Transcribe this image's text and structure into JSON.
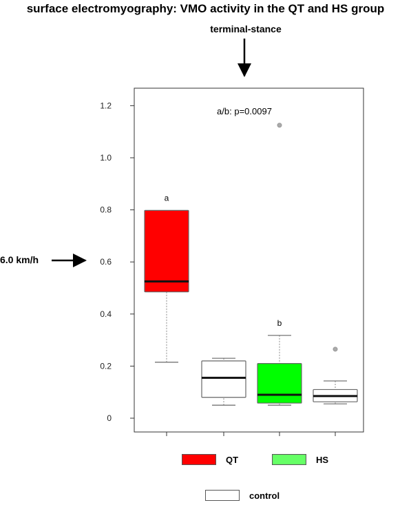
{
  "title": "surface electromyography: VMO activity in the QT and HS group",
  "phase_label": "terminal-stance",
  "speed_label": "6.0 km/h",
  "chart_data": {
    "type": "box",
    "title": "surface electromyography: VMO activity in the QT and HS group",
    "ylim": [
      0,
      1.25
    ],
    "yticks": [
      0,
      0.2,
      0.4,
      0.6,
      0.8,
      1.0,
      1.2
    ],
    "ytick_labels": [
      "0",
      "0.2",
      "0.4",
      "0.6",
      "0.8",
      "1.0",
      "1.2"
    ],
    "annotation": "a/b: p=0.0097",
    "boxes": [
      {
        "group": "QT",
        "color": "#ff0000",
        "whisker_low": 0.215,
        "q1": 0.485,
        "median": 0.525,
        "q3": 0.798,
        "whisker_high": 0.798,
        "outliers": [],
        "letter": "a"
      },
      {
        "group": "control",
        "color": "#ffffff",
        "whisker_low": 0.05,
        "q1": 0.08,
        "median": 0.155,
        "q3": 0.22,
        "whisker_high": 0.23,
        "outliers": [],
        "letter": ""
      },
      {
        "group": "HS",
        "color": "#00ff00",
        "whisker_low": 0.05,
        "q1": 0.058,
        "median": 0.09,
        "q3": 0.21,
        "whisker_high": 0.318,
        "outliers": [
          1.125
        ],
        "letter": "b"
      },
      {
        "group": "control",
        "color": "#ffffff",
        "whisker_low": 0.055,
        "q1": 0.063,
        "median": 0.085,
        "q3": 0.11,
        "whisker_high": 0.143,
        "outliers": [
          0.265
        ],
        "letter": ""
      }
    ],
    "legend": [
      {
        "label": "QT",
        "color": "#ff0000"
      },
      {
        "label": "HS",
        "color": "#66ff66"
      },
      {
        "label": "control",
        "color": "#ffffff"
      }
    ]
  }
}
